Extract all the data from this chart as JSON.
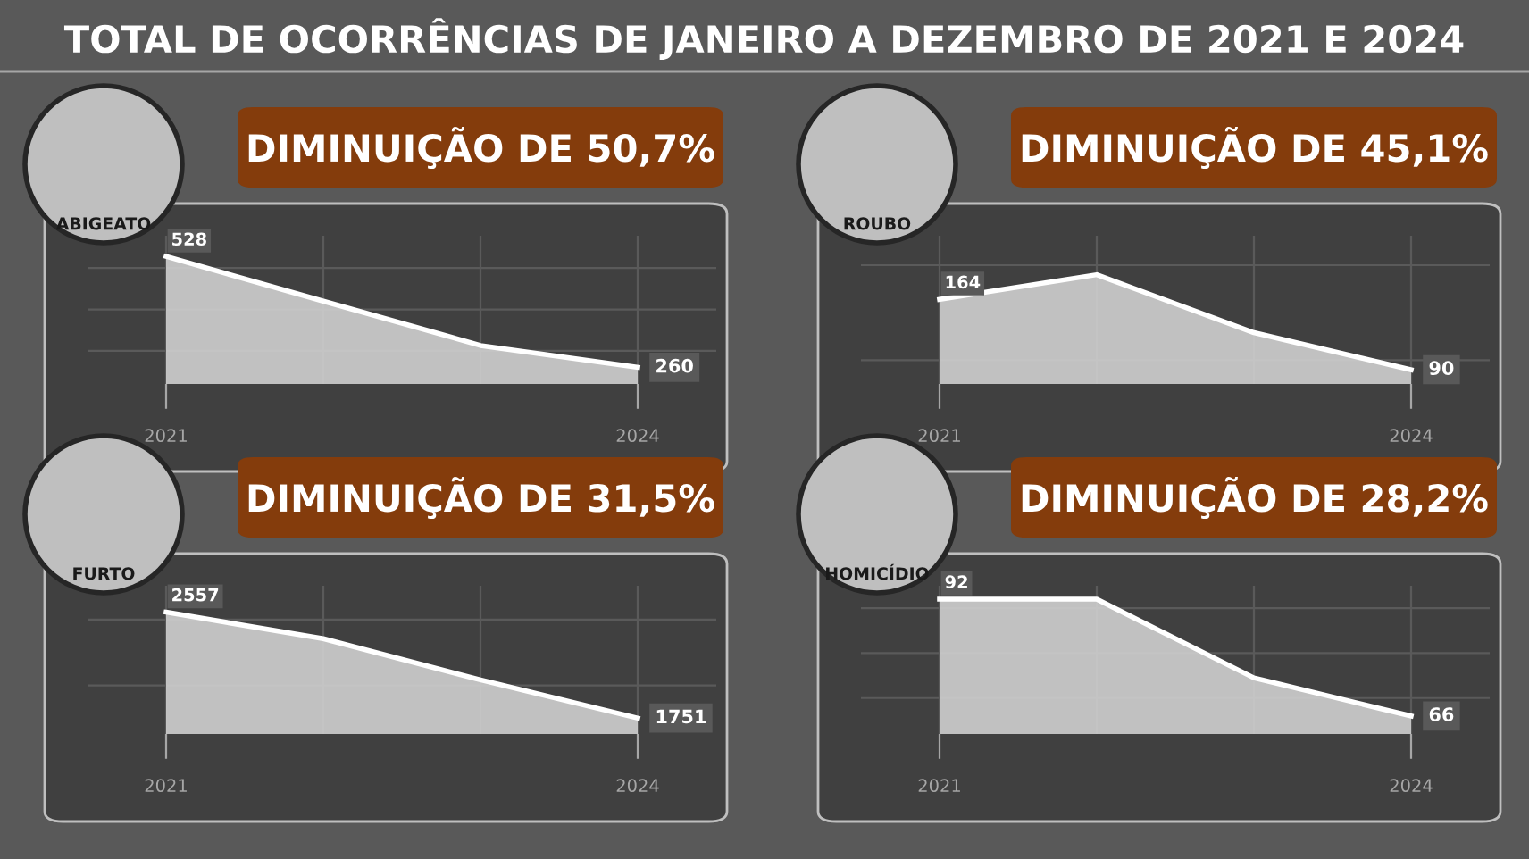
{
  "chart_data": [
    {
      "type": "area",
      "title": "DIMINUIÇÃO DE 50,7%",
      "subtitle": "ABIGEATO",
      "annotations": [
        "TOTAL DE OCORRÊNCIAS DE JANEIRO A DEZEMBRO DE 2021 E 2024"
      ],
      "grid": true,
      "tick_labels": "x",
      "ylim": [
        220,
        578
      ],
      "categories": [
        "2021",
        null,
        null,
        "2024"
      ],
      "series": [
        {
          "color": "#ffffff",
          "values": [
            528,
            420,
            313,
            260
          ],
          "value_labels": [
            "528",
            null,
            null,
            "260"
          ]
        }
      ]
    },
    {
      "type": "area",
      "title": "DIMINUIÇÃO DE 45,1%",
      "subtitle": "ROUBO",
      "grid": true,
      "tick_labels": "x",
      "ylim": [
        75,
        231
      ],
      "categories": [
        "2021",
        null,
        null,
        "2024"
      ],
      "series": [
        {
          "color": "#ffffff",
          "values": [
            164,
            190,
            129,
            90
          ],
          "value_labels": [
            "164",
            null,
            null,
            "90"
          ]
        }
      ]
    },
    {
      "type": "area",
      "title": "DIMINUIÇÃO DE 31,5%",
      "subtitle": "FURTO",
      "grid": true,
      "tick_labels": "x",
      "ylim": [
        1630,
        2758
      ],
      "categories": [
        "2021",
        null,
        null,
        "2024"
      ],
      "series": [
        {
          "color": "#ffffff",
          "values": [
            2557,
            2355,
            2042,
            1751
          ],
          "value_labels": [
            "2557",
            null,
            null,
            "1751"
          ]
        }
      ]
    },
    {
      "type": "area",
      "title": "DIMINUIÇÃO DE 28,2%",
      "subtitle": "HOMICÍDIO",
      "grid": true,
      "tick_labels": "x",
      "ylim": [
        62,
        95
      ],
      "categories": [
        "2021",
        null,
        null,
        "2024"
      ],
      "series": [
        {
          "color": "#ffffff",
          "values": [
            92,
            92,
            74.5,
            66
          ],
          "value_labels": [
            "92",
            null,
            null,
            "66"
          ]
        }
      ]
    }
  ]
}
